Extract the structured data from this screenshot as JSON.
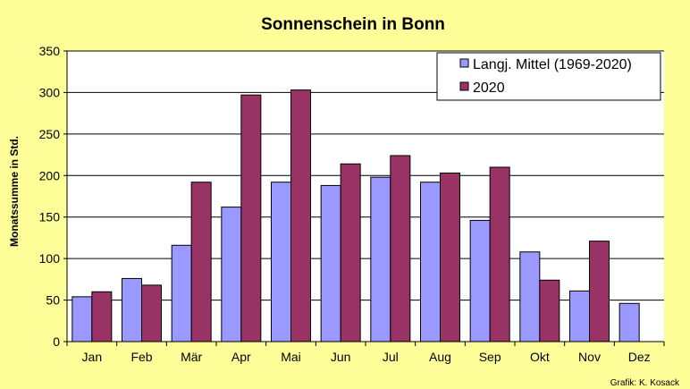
{
  "chart_data": {
    "type": "bar",
    "title": "Sonnenschein in Bonn",
    "ylabel": "Monatssumme in Std.",
    "xlabel": "",
    "ylim": [
      0,
      350
    ],
    "yticks": [
      0,
      50,
      100,
      150,
      200,
      250,
      300,
      350
    ],
    "grid": true,
    "legend_position": "top-right",
    "categories": [
      "Jan",
      "Feb",
      "Mär",
      "Apr",
      "Mai",
      "Jun",
      "Jul",
      "Aug",
      "Sep",
      "Okt",
      "Nov",
      "Dez"
    ],
    "series": [
      {
        "name": "Langj. Mittel (1969-2020)",
        "color": "#9999FF",
        "values": [
          54,
          76,
          116,
          162,
          192,
          188,
          198,
          192,
          146,
          108,
          61,
          46
        ]
      },
      {
        "name": "2020",
        "color": "#993366",
        "values": [
          60,
          68,
          192,
          297,
          303,
          214,
          224,
          203,
          210,
          74,
          121,
          null
        ]
      }
    ]
  },
  "credit": "Grafik:  K. Kosack",
  "colors": {
    "background": "#FFFF99",
    "plot_area": "#FFFFFF",
    "gridline": "#000000"
  }
}
